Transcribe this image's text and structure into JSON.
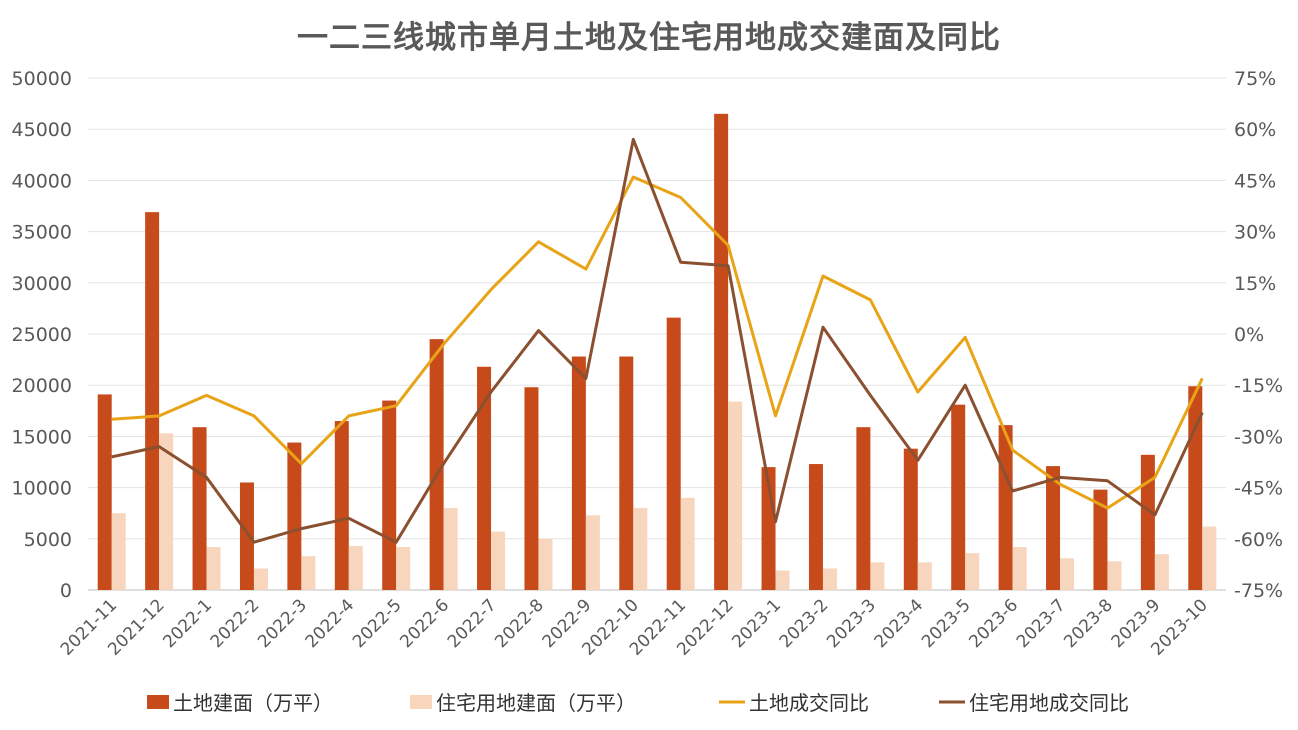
{
  "chart_data": {
    "type": "bar",
    "title": "一二三线城市单月土地及住宅用地成交建面及同比",
    "categories": [
      "2021-11",
      "2021-12",
      "2022-1",
      "2022-2",
      "2022-3",
      "2022-4",
      "2022-5",
      "2022-6",
      "2022-7",
      "2022-8",
      "2022-9",
      "2022-10",
      "2022-11",
      "2022-12",
      "2023-1",
      "2023-2",
      "2023-3",
      "2023-4",
      "2023-5",
      "2023-6",
      "2023-7",
      "2023-8",
      "2023-9",
      "2023-10"
    ],
    "y_left": {
      "min": 0,
      "max": 50000,
      "ticks": [
        "0",
        "5000",
        "10000",
        "15000",
        "20000",
        "25000",
        "30000",
        "35000",
        "40000",
        "45000",
        "50000"
      ]
    },
    "y_right": {
      "min": -75,
      "max": 75,
      "ticks": [
        "-75%",
        "-60%",
        "-45%",
        "-30%",
        "-15%",
        "0%",
        "15%",
        "30%",
        "45%",
        "60%",
        "75%"
      ]
    },
    "series": [
      {
        "name": "土地建面（万平）",
        "type": "bar",
        "axis": "left",
        "color": "#C74B1A",
        "values": [
          19100,
          36900,
          15900,
          10500,
          14400,
          16500,
          18500,
          24500,
          21800,
          19800,
          22800,
          22800,
          26600,
          46500,
          12000,
          12300,
          15900,
          13800,
          18100,
          16100,
          12100,
          9800,
          13200,
          19900
        ]
      },
      {
        "name": "住宅用地建面（万平）",
        "type": "bar",
        "axis": "left",
        "color": "#F8D5BD",
        "values": [
          7500,
          15300,
          4200,
          2100,
          3300,
          4300,
          4200,
          8000,
          5700,
          5000,
          7300,
          8000,
          9000,
          18400,
          1900,
          2100,
          2700,
          2700,
          3600,
          4200,
          3100,
          2800,
          3500,
          6200
        ]
      },
      {
        "name": "土地成交同比",
        "type": "line",
        "axis": "right",
        "color": "#E8A317",
        "values": [
          -25,
          -24,
          -18,
          -24,
          -38,
          -24,
          -21,
          -3,
          13,
          27,
          19,
          46,
          40,
          26,
          -24,
          17,
          10,
          -17,
          -1,
          -34,
          -44,
          -51,
          -42,
          -13
        ]
      },
      {
        "name": "住宅用地成交同比",
        "type": "line",
        "axis": "right",
        "color": "#8B5030",
        "values": [
          -36,
          -33,
          -42,
          -61,
          -57,
          -54,
          -61,
          -38,
          -17,
          1,
          -13,
          57,
          21,
          20,
          -55,
          2,
          -18,
          -37,
          -15,
          -46,
          -42,
          -43,
          -53,
          -23
        ]
      }
    ],
    "legend": "bottom",
    "grid": true
  }
}
